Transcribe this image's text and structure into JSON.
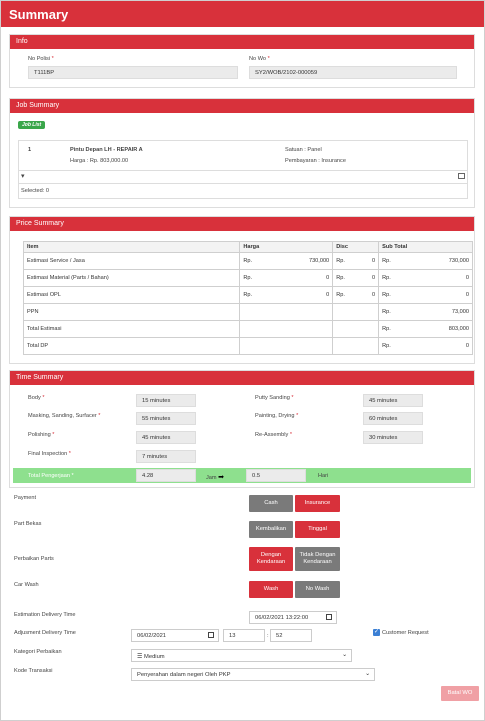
{
  "page": {
    "title": "Summary"
  },
  "info": {
    "heading": "Info",
    "no_polisi_label": "No Polisi",
    "no_polisi_value": "T111BP",
    "no_wo_label": "No Wo",
    "no_wo_value": "SY2/WOB/2102-000059"
  },
  "job_summary": {
    "heading": "Job Summary",
    "badge": "Job List",
    "item_no": "1",
    "item_name": "Pintu Depan LH - REPAIR A",
    "item_price": "Harga : Rp. 803,000.00",
    "item_satuan": "Satuan : Panel",
    "item_payment": "Pembayaran : Insurance",
    "selected": "Selected: 0"
  },
  "price_summary": {
    "heading": "Price Summary",
    "columns": [
      "Item",
      "Harga",
      "Disc",
      "Sub Total"
    ],
    "currency": "Rp.",
    "rows": [
      {
        "item": "Estimasi Service / Jasa",
        "harga": "730,000",
        "disc": "0",
        "subtotal": "730,000"
      },
      {
        "item": "Estimasi Material (Parts / Bahan)",
        "harga": "0",
        "disc": "0",
        "subtotal": "0"
      },
      {
        "item": "Estimasi OPL",
        "harga": "0",
        "disc": "0",
        "subtotal": "0"
      },
      {
        "item": "PPN",
        "subtotal": "73,000"
      },
      {
        "item": "Total Estimasi",
        "subtotal": "803,000"
      },
      {
        "item": "Total DP",
        "subtotal": "0"
      }
    ]
  },
  "time_summary": {
    "heading": "Time Summary",
    "body_label": "Body",
    "body_value": "15 minutes",
    "putty_label": "Putty Sanding",
    "putty_value": "45 minutes",
    "masking_label": "Masking, Sanding, Surfacer",
    "masking_value": "55 minutes",
    "painting_label": "Painting, Drying",
    "painting_value": "60 minutes",
    "polishing_label": "Polishing",
    "polishing_value": "45 minutes",
    "reassembly_label": "Re-Assembly",
    "reassembly_value": "30 minutes",
    "final_label": "Final Inspection",
    "final_value": "7 minutes",
    "total_label": "Total Pengerjaan",
    "total_jam": "4.28",
    "jam_label": "Jam",
    "total_hari": "0.5",
    "hari_label": "Hari"
  },
  "form": {
    "payment_label": "Payment",
    "cash": "Cash",
    "insurance": "Insurance",
    "part_bekas_label": "Part Bekas",
    "kembalikan": "Kembalikan",
    "tinggal": "Tinggal",
    "perbaikan_parts_label": "Perbaikan Parts",
    "dengan_kendaraan": "Dengan Kendaraan",
    "tidak_dengan_kendaraan": "Tidak Dengan Kendaraan",
    "car_wash_label": "Car Wash",
    "wash": "Wash",
    "no_wash": "No Wash",
    "est_delivery_label": "Estimation Delivery Time",
    "est_delivery_value": "06/02/2021 13:22:00",
    "adj_delivery_label": "Adjusment Delivery Time",
    "adj_date": "06/02/2021",
    "adj_hour": "13",
    "adj_minute": "52",
    "adj_sep": ":",
    "customer_request": "Customer Request",
    "kategori_label": "Kategori Perbaikan",
    "kategori_value": "Medium",
    "kode_label": "Kode Transaksi",
    "kode_value": "Penyerahan dalam negeri Oleh PKP",
    "submit": "Batal WO"
  },
  "colors": {
    "accent": "#d8313b",
    "green": "#8ee08e",
    "gray_button": "#7a7a7a"
  }
}
